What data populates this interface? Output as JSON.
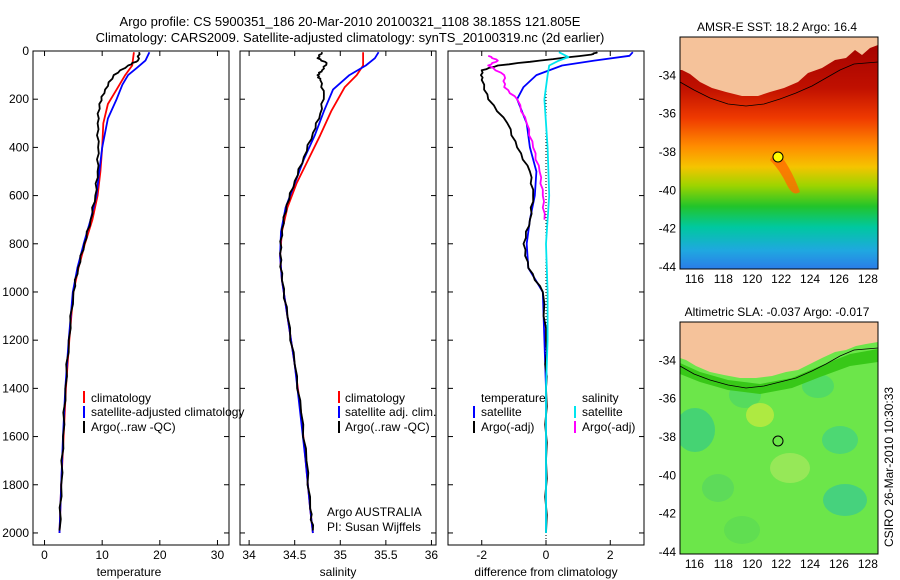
{
  "header": {
    "title_line1": "Argo profile: CS 5900351_186 20-Mar-2010 20100321_1108 38.185S 121.805E",
    "title_line2": "Climatology: CARS2009. Satellite-adjusted climatology: synTS_20100319.nc (2d earlier)"
  },
  "side_label": "CSIRO 26-Mar-2010 10:30:33",
  "colors": {
    "climatology": "#ff0000",
    "satellite": "#0000ff",
    "argo": "#000000",
    "sat_salinity": "#00e5ee",
    "argo_salinity_adj": "#ff00ff",
    "land": "#f5c29a"
  },
  "chart_data": [
    {
      "type": "line",
      "name": "temperature panel",
      "xlabel": "temperature",
      "ylabel": "",
      "xlim": [
        -2,
        32
      ],
      "ylim": [
        2050,
        0
      ],
      "y_reversed": true,
      "xticks": [
        0,
        10,
        20,
        30
      ],
      "yticks": [
        0,
        200,
        400,
        600,
        800,
        1000,
        1200,
        1400,
        1600,
        1800,
        2000
      ],
      "legend": [
        "climatology",
        "satellite-adjusted climatology",
        "Argo(..raw -QC)"
      ],
      "series": [
        {
          "name": "climatology",
          "color": "#ff0000",
          "points": [
            [
              15.5,
              5
            ],
            [
              15.2,
              60
            ],
            [
              14,
              100
            ],
            [
              12.5,
              160
            ],
            [
              11,
              220
            ],
            [
              10.2,
              300
            ],
            [
              10,
              400
            ],
            [
              9.7,
              500
            ],
            [
              9.2,
              600
            ],
            [
              8.3,
              700
            ],
            [
              7,
              800
            ],
            [
              5.9,
              900
            ],
            [
              5,
              1000
            ],
            [
              4.3,
              1200
            ],
            [
              3.7,
              1400
            ],
            [
              3.3,
              1600
            ],
            [
              2.9,
              1800
            ],
            [
              2.6,
              2000
            ]
          ]
        },
        {
          "name": "satellite-adjusted climatology",
          "color": "#0000ff",
          "points": [
            [
              18.2,
              5
            ],
            [
              17.5,
              40
            ],
            [
              16,
              70
            ],
            [
              14.5,
              100
            ],
            [
              13.5,
              140
            ],
            [
              12.5,
              200
            ],
            [
              11,
              280
            ],
            [
              10,
              400
            ],
            [
              9.5,
              500
            ],
            [
              9,
              600
            ],
            [
              8,
              700
            ],
            [
              6.8,
              800
            ],
            [
              5.7,
              900
            ],
            [
              4.9,
              1000
            ],
            [
              4.2,
              1200
            ],
            [
              3.6,
              1400
            ],
            [
              3.2,
              1600
            ],
            [
              2.9,
              1800
            ],
            [
              2.6,
              2000
            ]
          ]
        },
        {
          "name": "Argo(..raw -QC)",
          "color": "#000000",
          "points": [
            [
              16.4,
              5
            ],
            [
              16.2,
              40
            ],
            [
              14.5,
              60
            ],
            [
              12,
              100
            ],
            [
              10.5,
              160
            ],
            [
              9.5,
              220
            ],
            [
              9.2,
              300
            ],
            [
              9.3,
              400
            ],
            [
              9.2,
              500
            ],
            [
              8.8,
              600
            ],
            [
              8,
              700
            ],
            [
              6.9,
              800
            ],
            [
              5.8,
              900
            ],
            [
              5,
              1000
            ],
            [
              4.2,
              1200
            ],
            [
              3.6,
              1400
            ],
            [
              3.2,
              1600
            ],
            [
              2.9,
              1800
            ],
            [
              2.6,
              1990
            ]
          ]
        }
      ]
    },
    {
      "type": "line",
      "name": "salinity panel",
      "xlabel": "salinity",
      "ylabel": "",
      "xlim": [
        33.9,
        36.05
      ],
      "ylim": [
        2050,
        0
      ],
      "y_reversed": true,
      "xticks": [
        34,
        34.5,
        35,
        35.5,
        36
      ],
      "legend": [
        "climatology",
        "satellite adj. clim.",
        "Argo(..raw -QC)"
      ],
      "annotation": [
        "Argo AUSTRALIA",
        "PI: Susan Wijffels"
      ],
      "series": [
        {
          "name": "climatology",
          "color": "#ff0000",
          "points": [
            [
              35.25,
              5
            ],
            [
              35.25,
              60
            ],
            [
              35.18,
              100
            ],
            [
              35.05,
              150
            ],
            [
              34.9,
              250
            ],
            [
              34.78,
              350
            ],
            [
              34.65,
              450
            ],
            [
              34.52,
              550
            ],
            [
              34.42,
              650
            ],
            [
              34.36,
              750
            ],
            [
              34.34,
              850
            ],
            [
              34.36,
              950
            ],
            [
              34.42,
              1100
            ],
            [
              34.5,
              1300
            ],
            [
              34.57,
              1500
            ],
            [
              34.62,
              1700
            ],
            [
              34.67,
              1900
            ],
            [
              34.7,
              2000
            ]
          ]
        },
        {
          "name": "satellite adj. clim.",
          "color": "#0000ff",
          "points": [
            [
              35.42,
              5
            ],
            [
              35.38,
              30
            ],
            [
              35.28,
              60
            ],
            [
              35.1,
              100
            ],
            [
              34.92,
              160
            ],
            [
              34.82,
              250
            ],
            [
              34.72,
              350
            ],
            [
              34.6,
              450
            ],
            [
              34.5,
              550
            ],
            [
              34.4,
              650
            ],
            [
              34.35,
              750
            ],
            [
              34.34,
              850
            ],
            [
              34.36,
              950
            ],
            [
              34.42,
              1100
            ],
            [
              34.5,
              1300
            ],
            [
              34.56,
              1500
            ],
            [
              34.62,
              1700
            ],
            [
              34.67,
              1900
            ],
            [
              34.7,
              2000
            ]
          ]
        },
        {
          "name": "Argo(..raw -QC)",
          "color": "#000000",
          "points": [
            [
              34.8,
              5
            ],
            [
              34.75,
              30
            ],
            [
              34.85,
              50
            ],
            [
              34.8,
              80
            ],
            [
              34.75,
              100
            ],
            [
              34.78,
              120
            ],
            [
              34.82,
              180
            ],
            [
              34.78,
              260
            ],
            [
              34.7,
              340
            ],
            [
              34.6,
              440
            ],
            [
              34.5,
              540
            ],
            [
              34.41,
              640
            ],
            [
              34.36,
              740
            ],
            [
              34.34,
              840
            ],
            [
              34.36,
              950
            ],
            [
              34.42,
              1100
            ],
            [
              34.5,
              1300
            ],
            [
              34.57,
              1500
            ],
            [
              34.63,
              1700
            ],
            [
              34.67,
              1900
            ],
            [
              34.7,
              1990
            ]
          ]
        }
      ]
    },
    {
      "type": "line",
      "name": "difference panel",
      "xlabel": "difference from climatology",
      "ylabel": "",
      "xlim": [
        -3.05,
        3.05
      ],
      "ylim": [
        2050,
        0
      ],
      "y_reversed": true,
      "xticks": [
        -2,
        0,
        2
      ],
      "legend_left_header": "temperature",
      "legend_right_header": "salinity",
      "legend": [
        "satellite",
        "Argo(-adj)",
        "satellite",
        "Argo(-adj)"
      ],
      "series": [
        {
          "name": "temperature satellite",
          "color": "#0000ff",
          "points": [
            [
              2.7,
              5
            ],
            [
              2.6,
              20
            ],
            [
              1.5,
              40
            ],
            [
              0.5,
              60
            ],
            [
              -0.3,
              100
            ],
            [
              -0.7,
              150
            ],
            [
              -0.9,
              200
            ],
            [
              -0.6,
              300
            ],
            [
              -0.5,
              400
            ],
            [
              -0.3,
              500
            ],
            [
              -0.35,
              600
            ],
            [
              -0.5,
              700
            ],
            [
              -0.6,
              800
            ],
            [
              -0.55,
              900
            ],
            [
              -0.1,
              1000
            ],
            [
              -0.05,
              1200
            ],
            [
              0,
              1400
            ],
            [
              0,
              1700
            ],
            [
              0,
              2000
            ]
          ]
        },
        {
          "name": "temperature Argo(-adj)",
          "color": "#000000",
          "points": [
            [
              1.6,
              5
            ],
            [
              1.4,
              15
            ],
            [
              -0.2,
              40
            ],
            [
              -1.5,
              60
            ],
            [
              -2,
              80
            ],
            [
              -2,
              120
            ],
            [
              -1.8,
              200
            ],
            [
              -1.2,
              300
            ],
            [
              -0.9,
              400
            ],
            [
              -0.5,
              500
            ],
            [
              -0.4,
              600
            ],
            [
              -0.5,
              700
            ],
            [
              -0.7,
              800
            ],
            [
              -0.55,
              900
            ],
            [
              -0.1,
              1000
            ],
            [
              0,
              1200
            ],
            [
              0,
              1400
            ],
            [
              0,
              1700
            ],
            [
              0,
              2000
            ]
          ]
        },
        {
          "name": "salinity satellite",
          "color": "#00e5ee",
          "points": [
            [
              0.4,
              5
            ],
            [
              0.7,
              25
            ],
            [
              0.4,
              40
            ],
            [
              0.1,
              60
            ],
            [
              0.05,
              100
            ],
            [
              -0.05,
              200
            ],
            [
              0.05,
              400
            ],
            [
              0.1,
              600
            ],
            [
              0.05,
              700
            ],
            [
              0,
              800
            ],
            [
              0.05,
              1000
            ],
            [
              0.05,
              1200
            ],
            [
              0,
              1400
            ],
            [
              0,
              1700
            ],
            [
              0,
              2000
            ]
          ]
        },
        {
          "name": "salinity Argo(-adj)",
          "color": "#ff00ff",
          "points": [
            [
              -1.8,
              20
            ],
            [
              -1.5,
              40
            ],
            [
              -1.8,
              60
            ],
            [
              -1.3,
              100
            ],
            [
              -1.3,
              150
            ],
            [
              -0.9,
              200
            ],
            [
              -0.6,
              300
            ],
            [
              -0.4,
              400
            ],
            [
              -0.2,
              500
            ],
            [
              -0.1,
              600
            ],
            [
              -0.05,
              700
            ]
          ]
        }
      ]
    },
    {
      "type": "heatmap",
      "name": "sst map",
      "title": "AMSR-E SST: 18.2  Argo: 16.4",
      "xlim": [
        115,
        128.7
      ],
      "ylim": [
        -44.1,
        -32
      ],
      "xticks": [
        116,
        118,
        120,
        122,
        124,
        126,
        128
      ],
      "yticks": [
        -34,
        -36,
        -38,
        -40,
        -42,
        -44
      ],
      "marker": {
        "lon": 121.8,
        "lat": -38.2
      }
    },
    {
      "type": "heatmap",
      "name": "sla map",
      "title": "Altimetric SLA: -0.037  Argo: -0.017",
      "xlim": [
        115,
        128.7
      ],
      "ylim": [
        -44.1,
        -32
      ],
      "xticks": [
        116,
        118,
        120,
        122,
        124,
        126,
        128
      ],
      "yticks": [
        -34,
        -36,
        -38,
        -40,
        -42,
        -44
      ],
      "marker": {
        "lon": 121.8,
        "lat": -38.2
      }
    }
  ]
}
